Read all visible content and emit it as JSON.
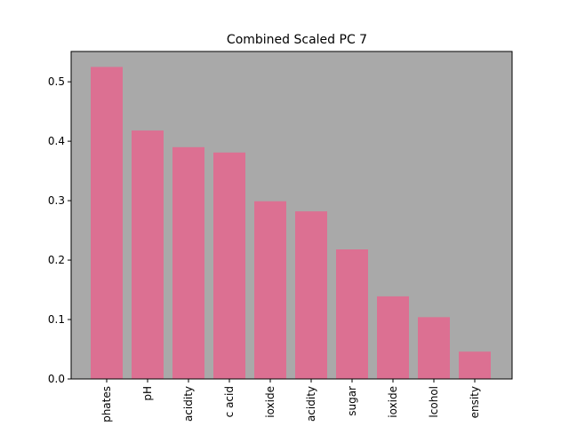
{
  "chart_data": {
    "type": "bar",
    "title": "Combined Scaled PC 7",
    "xlabel": "",
    "ylabel": "",
    "categories": [
      "phates",
      "pH",
      "acidity",
      "c acid",
      "ioxide",
      "acidity",
      "sugar",
      "ioxide",
      "lcohol",
      "ensity"
    ],
    "values": [
      0.525,
      0.418,
      0.39,
      0.381,
      0.299,
      0.282,
      0.218,
      0.139,
      0.104,
      0.046
    ],
    "ylim": [
      0,
      0.551
    ],
    "yticks": [
      0.0,
      0.1,
      0.2,
      0.3,
      0.4,
      0.5
    ],
    "ytick_labels": [
      "0.0",
      "0.1",
      "0.2",
      "0.3",
      "0.4",
      "0.5"
    ],
    "grid": false,
    "colors": {
      "bar": "#dc7092",
      "plot_background": "#a9a9a9"
    }
  }
}
